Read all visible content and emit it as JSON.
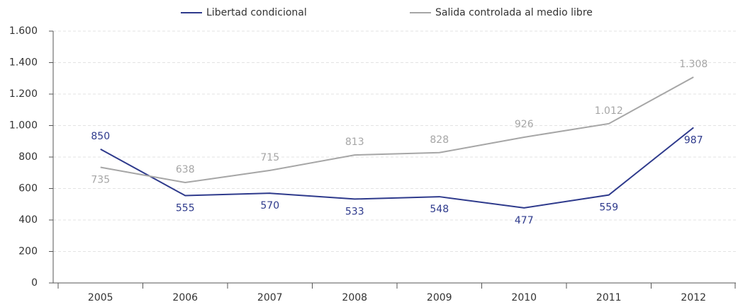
{
  "chart_data": {
    "type": "line",
    "categories": [
      "2005",
      "2006",
      "2007",
      "2008",
      "2009",
      "2010",
      "2011",
      "2012"
    ],
    "series": [
      {
        "name": "Libertad condicional",
        "color": "#2e3a8c",
        "values": [
          850,
          555,
          570,
          533,
          548,
          477,
          559,
          987
        ]
      },
      {
        "name": "Salida controlada al medio libre",
        "color": "#a6a6a6",
        "values": [
          735,
          638,
          715,
          813,
          828,
          926,
          1012,
          1308
        ],
        "value_labels": [
          "735",
          "638",
          "715",
          "813",
          "828",
          "926",
          "1.012",
          "1.308"
        ]
      }
    ],
    "ylim": [
      0,
      1600
    ],
    "yticks": [
      0,
      200,
      400,
      600,
      800,
      {
        "value": 1000,
        "label": "1.000"
      },
      {
        "value": 1200,
        "label": "1.200"
      },
      {
        "value": 1400,
        "label": "1.400"
      },
      {
        "value": 1600,
        "label": "1.600"
      }
    ],
    "grid": true,
    "legend": "top"
  }
}
